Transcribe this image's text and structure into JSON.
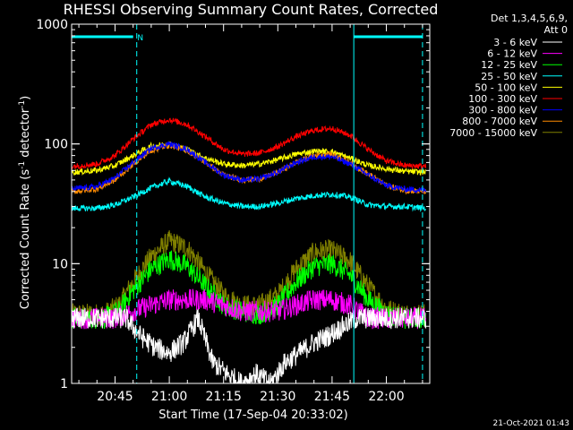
{
  "chart_data": {
    "type": "line",
    "title": "RHESSI Observing Summary Count Rates, Corrected",
    "xlabel": "Start Time (17-Sep-04 20:33:02)",
    "ylabel_main": "Corrected Count Rate (s",
    "ylabel_exp1": "-1",
    "ylabel_mid": " detector",
    "ylabel_exp2": "-1",
    "ylabel_end": ")",
    "y_scale": "log",
    "ylim": [
      1,
      1000
    ],
    "xlim": [
      "20:33",
      "22:12"
    ],
    "x_ticks": [
      "20:45",
      "21:00",
      "21:15",
      "21:30",
      "21:45",
      "22:00"
    ],
    "y_ticks": [
      "1",
      "10",
      "100",
      "1000"
    ],
    "grid": false,
    "legend_position": "right",
    "legend_header": [
      "Det 1,3,4,5,6,9,",
      "Att 0"
    ],
    "series": [
      {
        "name": "3 - 6 keV",
        "color": "#ffffff",
        "x": [
          "20:33",
          "20:45",
          "20:48",
          "20:52",
          "20:56",
          "21:00",
          "21:04",
          "21:08",
          "21:12",
          "21:16",
          "21:20",
          "21:24",
          "21:28",
          "21:32",
          "21:36",
          "21:40",
          "21:44",
          "21:48",
          "21:52",
          "21:56",
          "22:00",
          "22:04",
          "22:08",
          "22:11"
        ],
        "y": [
          3.5,
          3.5,
          3.5,
          2.5,
          2.0,
          1.8,
          2.2,
          3.5,
          1.5,
          1.2,
          1.0,
          1.2,
          1.0,
          1.5,
          1.8,
          2.2,
          2.5,
          3.0,
          3.5,
          3.5,
          3.5,
          3.5,
          3.5,
          3.5
        ]
      },
      {
        "name": "6 - 12 keV",
        "color": "#ff00ff",
        "x": [
          "20:33",
          "20:45",
          "20:50",
          "20:55",
          "21:00",
          "21:05",
          "21:10",
          "21:15",
          "21:20",
          "21:25",
          "21:30",
          "21:35",
          "21:40",
          "21:45",
          "21:50",
          "21:55",
          "22:00",
          "22:05",
          "22:11"
        ],
        "y": [
          3.5,
          3.5,
          4.0,
          4.5,
          5.0,
          5.0,
          5.0,
          4.5,
          4.0,
          4.0,
          4.0,
          4.5,
          5.0,
          5.0,
          4.5,
          3.5,
          3.5,
          3.5,
          3.5
        ]
      },
      {
        "name": "12 - 25 keV",
        "color": "#00ff00",
        "x": [
          "20:33",
          "20:42",
          "20:46",
          "20:50",
          "20:55",
          "21:00",
          "21:05",
          "21:10",
          "21:15",
          "21:20",
          "21:25",
          "21:30",
          "21:35",
          "21:40",
          "21:45",
          "21:50",
          "21:55",
          "22:00",
          "22:05",
          "22:11"
        ],
        "y": [
          3.5,
          3.5,
          4.0,
          6.0,
          9.0,
          11.0,
          9.5,
          6.5,
          4.5,
          4.0,
          3.8,
          4.5,
          7.0,
          9.5,
          10.0,
          8.0,
          5.0,
          3.8,
          3.5,
          3.5
        ]
      },
      {
        "name": "25 - 50 keV",
        "color": "#00ffff",
        "x": [
          "20:33",
          "20:40",
          "20:45",
          "20:50",
          "20:55",
          "21:00",
          "21:05",
          "21:10",
          "21:15",
          "21:20",
          "21:25",
          "21:30",
          "21:35",
          "21:40",
          "21:45",
          "21:50",
          "21:55",
          "22:00",
          "22:05",
          "22:11"
        ],
        "y": [
          29,
          29,
          31,
          36,
          43,
          49,
          44,
          36,
          32,
          30,
          30,
          32,
          35,
          37,
          38,
          36,
          31,
          30,
          30,
          29
        ]
      },
      {
        "name": "50 - 100 keV",
        "color": "#ffff00",
        "x": [
          "20:33",
          "20:40",
          "20:45",
          "20:50",
          "20:55",
          "21:00",
          "21:05",
          "21:10",
          "21:15",
          "21:20",
          "21:25",
          "21:30",
          "21:35",
          "21:40",
          "21:45",
          "21:50",
          "21:55",
          "22:00",
          "22:05",
          "22:11"
        ],
        "y": [
          58,
          60,
          66,
          80,
          96,
          100,
          90,
          76,
          68,
          66,
          68,
          74,
          82,
          87,
          86,
          76,
          66,
          62,
          59,
          58
        ]
      },
      {
        "name": "100 - 300 keV",
        "color": "#ff0000",
        "x": [
          "20:33",
          "20:40",
          "20:45",
          "20:50",
          "20:55",
          "21:00",
          "21:05",
          "21:10",
          "21:15",
          "21:20",
          "21:25",
          "21:30",
          "21:35",
          "21:40",
          "21:45",
          "21:50",
          "21:55",
          "22:00",
          "22:05",
          "22:11"
        ],
        "y": [
          65,
          68,
          80,
          110,
          145,
          160,
          145,
          115,
          90,
          82,
          84,
          95,
          115,
          130,
          135,
          118,
          90,
          72,
          66,
          65
        ]
      },
      {
        "name": "300 - 800 keV",
        "color": "#0000ff",
        "x": [
          "20:33",
          "20:40",
          "20:45",
          "20:50",
          "20:55",
          "21:00",
          "21:05",
          "21:10",
          "21:15",
          "21:20",
          "21:25",
          "21:30",
          "21:35",
          "21:40",
          "21:45",
          "21:50",
          "21:55",
          "22:00",
          "22:05",
          "22:11"
        ],
        "y": [
          42,
          44,
          52,
          70,
          92,
          100,
          90,
          70,
          55,
          50,
          51,
          58,
          70,
          78,
          78,
          68,
          55,
          45,
          42,
          41
        ]
      },
      {
        "name": "800 - 7000 keV",
        "color": "#ff8c00",
        "x": [
          "20:33",
          "20:40",
          "20:45",
          "20:50",
          "20:55",
          "21:00",
          "21:05",
          "21:10",
          "21:15",
          "21:20",
          "21:25",
          "21:30",
          "21:35",
          "21:40",
          "21:45",
          "21:50",
          "21:55",
          "22:00",
          "22:05",
          "22:11"
        ],
        "y": [
          40,
          42,
          50,
          68,
          88,
          98,
          88,
          70,
          55,
          50,
          51,
          58,
          70,
          80,
          82,
          70,
          56,
          45,
          41,
          40
        ]
      },
      {
        "name": "7000 - 15000 keV",
        "color": "#808000",
        "x": [
          "20:33",
          "20:42",
          "20:46",
          "20:50",
          "20:55",
          "21:00",
          "21:05",
          "21:10",
          "21:15",
          "21:20",
          "21:25",
          "21:30",
          "21:35",
          "21:40",
          "21:45",
          "21:50",
          "21:55",
          "22:00",
          "22:05",
          "22:11"
        ],
        "y": [
          3.8,
          3.8,
          4.5,
          7.0,
          11.5,
          15.5,
          13.5,
          8.5,
          5.5,
          4.5,
          4.5,
          5.5,
          9.0,
          12.5,
          13.0,
          10.5,
          6.5,
          4.2,
          3.8,
          3.8
        ]
      }
    ],
    "vertical_markers": [
      {
        "time": "20:33",
        "style": "solid",
        "color": "#00ffff"
      },
      {
        "time": "20:51",
        "style": "dashed",
        "color": "#00ffff"
      },
      {
        "time": "21:51",
        "style": "solid",
        "color": "#00ffff"
      },
      {
        "time": "22:10",
        "style": "dashed",
        "color": "#00ffff"
      }
    ],
    "night_bars": [
      {
        "start": "20:33",
        "end": "20:50",
        "label": "N"
      },
      {
        "start": "21:51",
        "end": "22:10",
        "label": ""
      }
    ],
    "bar_color": "#00ffff"
  },
  "footer": {
    "timestamp": "21-Oct-2021 01:43"
  }
}
